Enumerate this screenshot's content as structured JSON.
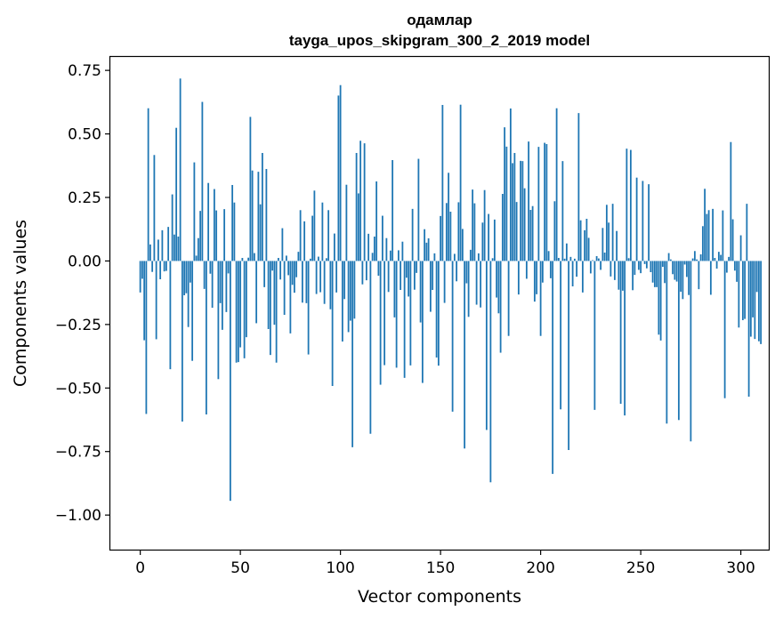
{
  "chart_data": {
    "type": "bar",
    "title": "одамлар",
    "subtitle": "tayga_upos_skipgram_300_2_2019 model",
    "xlabel": "Vector components",
    "ylabel": "Components values",
    "xlim": [
      -14.95,
      313.95
    ],
    "ylim": [
      -1.136,
      0.803
    ],
    "xticks": [
      0,
      50,
      100,
      150,
      200,
      250,
      300
    ],
    "xtick_labels": [
      "0",
      "50",
      "100",
      "150",
      "200",
      "250",
      "300"
    ],
    "yticks": [
      0.75,
      0.5,
      0.25,
      0.0,
      -0.25,
      -0.5,
      -0.75,
      -1.0
    ],
    "ytick_labels": [
      "0.75",
      "0.50",
      "0.25",
      "0.00",
      "−0.25",
      "−0.50",
      "−0.75",
      "−1.00"
    ],
    "grid": false,
    "bar_color": "#1f77b4",
    "values": [
      -0.124,
      -0.07,
      -0.312,
      -0.602,
      0.601,
      0.065,
      -0.043,
      0.417,
      -0.308,
      0.084,
      -0.072,
      0.121,
      -0.041,
      -0.039,
      0.134,
      -0.426,
      0.262,
      0.104,
      0.524,
      0.096,
      0.718,
      -0.632,
      -0.135,
      -0.127,
      -0.26,
      -0.085,
      -0.393,
      0.388,
      0.021,
      0.09,
      0.197,
      0.626,
      -0.11,
      -0.604,
      0.307,
      -0.05,
      -0.184,
      0.283,
      0.199,
      -0.465,
      -0.166,
      -0.271,
      0.204,
      -0.201,
      -0.049,
      -0.944,
      0.299,
      0.23,
      -0.4,
      -0.398,
      -0.34,
      0.012,
      -0.383,
      -0.3,
      0.013,
      0.567,
      0.356,
      0.031,
      -0.245,
      0.351,
      0.223,
      0.425,
      -0.103,
      0.362,
      -0.268,
      -0.37,
      -0.038,
      -0.251,
      -0.4,
      0.012,
      -0.073,
      0.129,
      -0.212,
      0.021,
      -0.056,
      -0.285,
      -0.094,
      -0.125,
      -0.064,
      0.036,
      0.2,
      -0.164,
      0.156,
      -0.166,
      -0.368,
      0.009,
      0.178,
      0.277,
      -0.13,
      0.017,
      -0.123,
      0.23,
      -0.169,
      0.011,
      0.2,
      -0.19,
      -0.492,
      0.108,
      -0.124,
      0.651,
      0.692,
      -0.317,
      -0.15,
      0.3,
      -0.28,
      -0.235,
      -0.733,
      -0.227,
      0.425,
      0.266,
      0.473,
      -0.092,
      0.463,
      -0.076,
      0.107,
      -0.68,
      0.032,
      0.096,
      0.313,
      -0.058,
      -0.487,
      0.178,
      -0.41,
      0.09,
      -0.122,
      0.041,
      0.397,
      -0.222,
      -0.42,
      0.042,
      -0.114,
      0.076,
      -0.46,
      -0.066,
      -0.14,
      -0.411,
      0.205,
      -0.113,
      -0.047,
      0.402,
      -0.242,
      -0.48,
      0.125,
      0.072,
      0.089,
      -0.2,
      -0.114,
      0.03,
      -0.38,
      -0.412,
      0.177,
      0.614,
      -0.165,
      0.228,
      0.347,
      0.194,
      -0.593,
      0.028,
      -0.08,
      0.231,
      0.615,
      0.126,
      -0.738,
      -0.088,
      -0.22,
      0.044,
      0.281,
      0.227,
      -0.172,
      0.03,
      -0.183,
      0.151,
      0.279,
      -0.665,
      0.185,
      -0.871,
      0.011,
      0.163,
      -0.144,
      -0.206,
      -0.361,
      0.264,
      0.526,
      0.45,
      -0.295,
      0.6,
      0.385,
      0.425,
      0.232,
      -0.132,
      0.394,
      0.393,
      0.286,
      -0.07,
      0.47,
      0.201,
      0.216,
      -0.16,
      -0.131,
      0.449,
      -0.295,
      -0.085,
      0.465,
      0.46,
      0.039,
      -0.068,
      -0.838,
      0.235,
      0.601,
      0.012,
      -0.584,
      0.393,
      0.009,
      0.069,
      -0.744,
      0.016,
      -0.1,
      0.009,
      -0.062,
      0.582,
      0.16,
      -0.124,
      0.121,
      0.166,
      0.091,
      -0.049,
      0.003,
      -0.586,
      0.019,
      0.01,
      -0.035,
      0.13,
      0.033,
      0.221,
      0.151,
      -0.061,
      0.225,
      -0.075,
      0.118,
      -0.113,
      -0.562,
      -0.117,
      -0.608,
      0.442,
      0.011,
      0.437,
      -0.115,
      -0.055,
      0.328,
      -0.035,
      -0.048,
      0.315,
      -0.012,
      -0.029,
      0.302,
      -0.044,
      -0.085,
      -0.103,
      -0.103,
      -0.29,
      -0.313,
      -0.023,
      -0.087,
      -0.64,
      0.031,
      0.006,
      -0.052,
      -0.074,
      -0.081,
      -0.626,
      -0.121,
      -0.15,
      -0.014,
      -0.063,
      -0.134,
      -0.71,
      0.01,
      0.039,
      0.006,
      -0.111,
      0.026,
      0.137,
      0.284,
      0.185,
      0.2,
      -0.133,
      0.205,
      0.012,
      -0.03,
      0.036,
      0.024,
      0.199,
      -0.54,
      -0.046,
      0.016,
      0.468,
      0.164,
      -0.038,
      -0.082,
      -0.262,
      0.101,
      -0.233,
      -0.228,
      0.225,
      -0.534,
      -0.298,
      -0.222,
      -0.307,
      -0.122,
      -0.316,
      -0.327
    ]
  }
}
